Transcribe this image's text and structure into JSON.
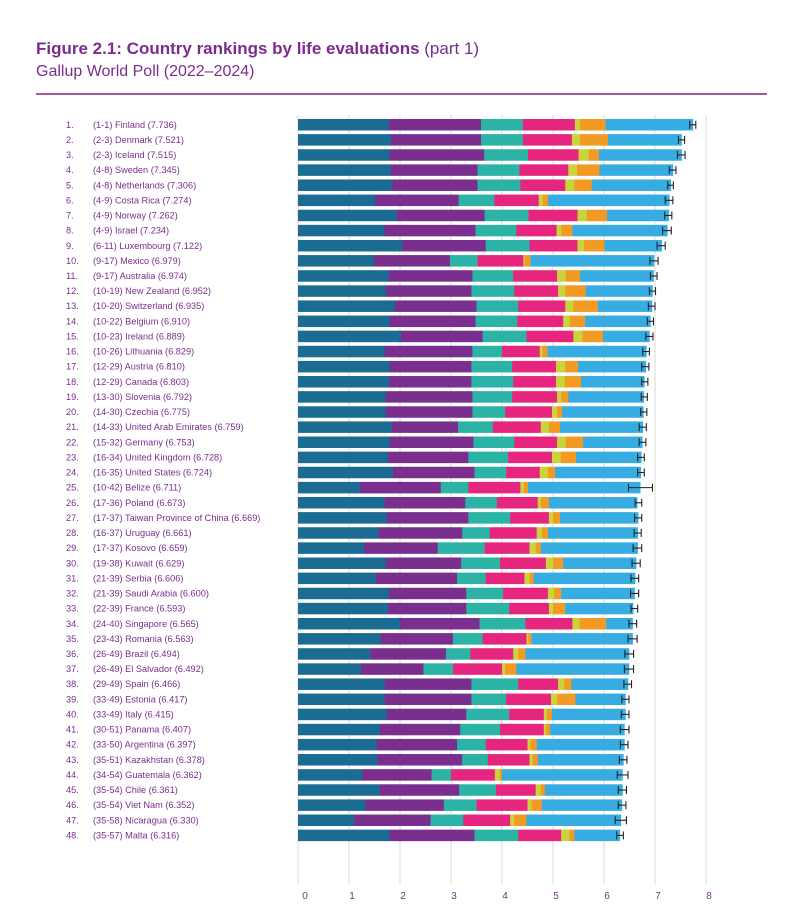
{
  "header": {
    "title": "Figure 2.1: Country rankings by life evaluations",
    "title_suffix": "(part 1)",
    "subtitle": "Gallup World Poll (2022–2024)"
  },
  "colors": {
    "title": "#7b2d8e",
    "rule": "#a9559f",
    "segments": [
      "#1b6b93",
      "#7a2f8f",
      "#2bb3a6",
      "#e6267e",
      "#c7d53a",
      "#f39a24",
      "#36ace2"
    ]
  },
  "chart_data": {
    "type": "bar",
    "stacked": true,
    "orientation": "horizontal",
    "xlim": [
      0,
      8
    ],
    "x_ticks": [
      0,
      1,
      2,
      3,
      4,
      5,
      6,
      7,
      8
    ],
    "grid": true,
    "error_bars": true,
    "rows": [
      {
        "rank": "1.",
        "range": "(1-1)",
        "country": "Finland",
        "score": "7.736",
        "segments": [
          1.78,
          1.81,
          0.82,
          1.02,
          0.1,
          0.5,
          1.71
        ],
        "ci": [
          7.68,
          7.8
        ]
      },
      {
        "rank": "2.",
        "range": "(2-3)",
        "country": "Denmark",
        "score": "7.521",
        "segments": [
          1.82,
          1.77,
          0.82,
          0.96,
          0.16,
          0.55,
          1.44
        ],
        "ci": [
          7.46,
          7.58
        ]
      },
      {
        "rank": "3.",
        "range": "(2-3)",
        "country": "Iceland",
        "score": "7.515",
        "segments": [
          1.8,
          1.85,
          0.86,
          0.99,
          0.2,
          0.2,
          1.62
        ],
        "ci": [
          7.44,
          7.59
        ]
      },
      {
        "rank": "4.",
        "range": "(4-8)",
        "country": "Sweden",
        "score": "7.345",
        "segments": [
          1.82,
          1.7,
          0.82,
          0.96,
          0.17,
          0.44,
          1.44
        ],
        "ci": [
          7.28,
          7.41
        ]
      },
      {
        "rank": "5.",
        "range": "(4-8)",
        "country": "Netherlands",
        "score": "7.306",
        "segments": [
          1.84,
          1.68,
          0.84,
          0.88,
          0.18,
          0.34,
          1.55
        ],
        "ci": [
          7.25,
          7.36
        ]
      },
      {
        "rank": "6.",
        "range": "(4-9)",
        "country": "Costa Rica",
        "score": "7.274",
        "segments": [
          1.51,
          1.64,
          0.7,
          0.87,
          0.08,
          0.1,
          2.38
        ],
        "ci": [
          7.2,
          7.35
        ]
      },
      {
        "rank": "7.",
        "range": "(4-9)",
        "country": "Norway",
        "score": "7.262",
        "segments": [
          1.94,
          1.72,
          0.86,
          0.96,
          0.18,
          0.4,
          1.21
        ],
        "ci": [
          7.19,
          7.33
        ]
      },
      {
        "rank": "8.",
        "range": "(4-9)",
        "country": "Israel",
        "score": "7.234",
        "segments": [
          1.7,
          1.78,
          0.8,
          0.79,
          0.09,
          0.22,
          1.86
        ],
        "ci": [
          7.15,
          7.32
        ]
      },
      {
        "rank": "9.",
        "range": "(6-11)",
        "country": "Luxembourg",
        "score": "7.122",
        "segments": [
          2.04,
          1.64,
          0.86,
          0.94,
          0.13,
          0.4,
          1.12
        ],
        "ci": [
          7.04,
          7.2
        ]
      },
      {
        "rank": "10.",
        "range": "(9-17)",
        "country": "Mexico",
        "score": "6.979",
        "segments": [
          1.49,
          1.49,
          0.54,
          0.9,
          0.03,
          0.11,
          2.42
        ],
        "ci": [
          6.9,
          7.06
        ]
      },
      {
        "rank": "11.",
        "range": "(9-17)",
        "country": "Australia",
        "score": "6.974",
        "segments": [
          1.78,
          1.64,
          0.8,
          0.86,
          0.17,
          0.28,
          1.44
        ],
        "ci": [
          6.91,
          7.04
        ]
      },
      {
        "rank": "12.",
        "range": "(10-19)",
        "country": "New Zealand",
        "score": "6.952",
        "segments": [
          1.72,
          1.68,
          0.84,
          0.86,
          0.14,
          0.4,
          1.31
        ],
        "ci": [
          6.89,
          7.01
        ]
      },
      {
        "rank": "13.",
        "range": "(10-20)",
        "country": "Switzerland",
        "score": "6.935",
        "segments": [
          1.9,
          1.6,
          0.82,
          0.92,
          0.16,
          0.48,
          1.06
        ],
        "ci": [
          6.87,
          7.0
        ]
      },
      {
        "rank": "14.",
        "range": "(10-22)",
        "country": "Belgium",
        "score": "6.910",
        "segments": [
          1.8,
          1.68,
          0.82,
          0.9,
          0.13,
          0.3,
          1.28
        ],
        "ci": [
          6.85,
          6.97
        ]
      },
      {
        "rank": "15.",
        "range": "(10-23)",
        "country": "Ireland",
        "score": "6.889",
        "segments": [
          2.02,
          1.6,
          0.86,
          0.92,
          0.18,
          0.4,
          0.91
        ],
        "ci": [
          6.82,
          6.96
        ]
      },
      {
        "rank": "16.",
        "range": "(10-26)",
        "country": "Lithuania",
        "score": "6.829",
        "segments": [
          1.7,
          1.72,
          0.58,
          0.74,
          0.05,
          0.1,
          1.94
        ],
        "ci": [
          6.76,
          6.89
        ]
      },
      {
        "rank": "17.",
        "range": "(12-29)",
        "country": "Austria",
        "score": "6.810",
        "segments": [
          1.8,
          1.6,
          0.8,
          0.86,
          0.18,
          0.25,
          1.33
        ],
        "ci": [
          6.74,
          6.88
        ]
      },
      {
        "rank": "18.",
        "range": "(12-29)",
        "country": "Canada",
        "score": "6.803",
        "segments": [
          1.78,
          1.62,
          0.82,
          0.84,
          0.17,
          0.32,
          1.24
        ],
        "ci": [
          6.74,
          6.86
        ]
      },
      {
        "rank": "19.",
        "range": "(13-30)",
        "country": "Slovenia",
        "score": "6.792",
        "segments": [
          1.72,
          1.7,
          0.78,
          0.88,
          0.08,
          0.14,
          1.48
        ],
        "ci": [
          6.73,
          6.85
        ]
      },
      {
        "rank": "20.",
        "range": "(14-30)",
        "country": "Czechia",
        "score": "6.775",
        "segments": [
          1.72,
          1.7,
          0.64,
          0.92,
          0.1,
          0.1,
          1.59
        ],
        "ci": [
          6.72,
          6.84
        ]
      },
      {
        "rank": "21.",
        "range": "(14-33)",
        "country": "United Arab Emirates",
        "score": "6.759",
        "segments": [
          1.84,
          1.3,
          0.68,
          0.94,
          0.16,
          0.22,
          1.62
        ],
        "ci": [
          6.69,
          6.83
        ]
      },
      {
        "rank": "22.",
        "range": "(15-32)",
        "country": "Germany",
        "score": "6.753",
        "segments": [
          1.8,
          1.64,
          0.8,
          0.84,
          0.17,
          0.34,
          1.16
        ],
        "ci": [
          6.69,
          6.82
        ]
      },
      {
        "rank": "23.",
        "range": "(16-34)",
        "country": "United Kingdom",
        "score": "6.728",
        "segments": [
          1.76,
          1.58,
          0.78,
          0.86,
          0.17,
          0.3,
          1.28
        ],
        "ci": [
          6.66,
          6.79
        ]
      },
      {
        "rank": "24.",
        "range": "(16-35)",
        "country": "United States",
        "score": "6.724",
        "segments": [
          1.86,
          1.6,
          0.62,
          0.66,
          0.16,
          0.14,
          1.68
        ],
        "ci": [
          6.66,
          6.79
        ]
      },
      {
        "rank": "25.",
        "range": "(10-42)",
        "country": "Belize",
        "score": "6.711",
        "segments": [
          1.22,
          1.58,
          0.54,
          1.02,
          0.07,
          0.08,
          2.2
        ],
        "ci": [
          6.48,
          6.95
        ]
      },
      {
        "rank": "26.",
        "range": "(17-36)",
        "country": "Poland",
        "score": "6.673",
        "segments": [
          1.7,
          1.58,
          0.62,
          0.8,
          0.06,
          0.16,
          1.73
        ],
        "ci": [
          6.61,
          6.74
        ]
      },
      {
        "rank": "27.",
        "range": "(17-37)",
        "country": "Taiwan Province of China",
        "score": "6.669",
        "segments": [
          1.74,
          1.6,
          0.82,
          0.76,
          0.08,
          0.14,
          1.53
        ],
        "ci": [
          6.6,
          6.74
        ]
      },
      {
        "rank": "28.",
        "range": "(16-37)",
        "country": "Uruguay",
        "score": "6.661",
        "segments": [
          1.58,
          1.64,
          0.54,
          0.92,
          0.1,
          0.12,
          1.76
        ],
        "ci": [
          6.59,
          6.73
        ]
      },
      {
        "rank": "29.",
        "range": "(17-37)",
        "country": "Kosovo",
        "score": "6.659",
        "segments": [
          1.3,
          1.44,
          0.92,
          0.88,
          0.12,
          0.1,
          1.9
        ],
        "ci": [
          6.57,
          6.74
        ]
      },
      {
        "rank": "30.",
        "range": "(19-38)",
        "country": "Kuwait",
        "score": "6.629",
        "segments": [
          1.72,
          1.48,
          0.76,
          0.9,
          0.14,
          0.2,
          1.43
        ],
        "ci": [
          6.55,
          6.71
        ]
      },
      {
        "rank": "31.",
        "range": "(21-39)",
        "country": "Serbia",
        "score": "6.606",
        "segments": [
          1.52,
          1.6,
          0.56,
          0.76,
          0.1,
          0.08,
          1.99
        ],
        "ci": [
          6.53,
          6.68
        ]
      },
      {
        "rank": "32.",
        "range": "(21-39)",
        "country": "Saudi Arabia",
        "score": "6.600",
        "segments": [
          1.78,
          1.52,
          0.72,
          0.88,
          0.12,
          0.14,
          1.44
        ],
        "ci": [
          6.52,
          6.68
        ]
      },
      {
        "rank": "33.",
        "range": "(22-39)",
        "country": "France",
        "score": "6.593",
        "segments": [
          1.76,
          1.54,
          0.84,
          0.78,
          0.08,
          0.24,
          1.33
        ],
        "ci": [
          6.53,
          6.66
        ]
      },
      {
        "rank": "34.",
        "range": "(24-40)",
        "country": "Singapore",
        "score": "6.565",
        "segments": [
          2.0,
          1.56,
          0.9,
          0.92,
          0.14,
          0.52,
          0.52
        ],
        "ci": [
          6.49,
          6.64
        ]
      },
      {
        "rank": "35.",
        "range": "(23-43)",
        "country": "Romania",
        "score": "6.563",
        "segments": [
          1.62,
          1.42,
          0.58,
          0.86,
          0.04,
          0.06,
          1.98
        ],
        "ci": [
          6.47,
          6.65
        ]
      },
      {
        "rank": "36.",
        "range": "(26-49)",
        "country": "Brazil",
        "score": "6.494",
        "segments": [
          1.42,
          1.48,
          0.48,
          0.84,
          0.1,
          0.14,
          2.03
        ],
        "ci": [
          6.41,
          6.58
        ]
      },
      {
        "rank": "37.",
        "range": "(26-49)",
        "country": "El Salvador",
        "score": "6.492",
        "segments": [
          1.24,
          1.22,
          0.58,
          0.96,
          0.06,
          0.22,
          2.21
        ],
        "ci": [
          6.4,
          6.58
        ]
      },
      {
        "rank": "38.",
        "range": "(29-49)",
        "country": "Spain",
        "score": "6.466",
        "segments": [
          1.7,
          1.7,
          0.92,
          0.78,
          0.12,
          0.14,
          1.11
        ],
        "ci": [
          6.39,
          6.54
        ]
      },
      {
        "rank": "39.",
        "range": "(33-49)",
        "country": "Estonia",
        "score": "6.417",
        "segments": [
          1.7,
          1.7,
          0.68,
          0.88,
          0.12,
          0.36,
          0.98
        ],
        "ci": [
          6.35,
          6.49
        ]
      },
      {
        "rank": "40.",
        "range": "(33-49)",
        "country": "Italy",
        "score": "6.415",
        "segments": [
          1.74,
          1.56,
          0.84,
          0.68,
          0.06,
          0.1,
          1.44
        ],
        "ci": [
          6.34,
          6.49
        ]
      },
      {
        "rank": "41.",
        "range": "(30-51)",
        "country": "Panama",
        "score": "6.407",
        "segments": [
          1.6,
          1.58,
          0.78,
          0.86,
          0.04,
          0.08,
          1.46
        ],
        "ci": [
          6.32,
          6.49
        ]
      },
      {
        "rank": "42.",
        "range": "(33-50)",
        "country": "Argentina",
        "score": "6.397",
        "segments": [
          1.54,
          1.58,
          0.56,
          0.82,
          0.06,
          0.12,
          1.72
        ],
        "ci": [
          6.32,
          6.47
        ]
      },
      {
        "rank": "43.",
        "range": "(35-51)",
        "country": "Kazakhstan",
        "score": "6.378",
        "segments": [
          1.56,
          1.66,
          0.5,
          0.82,
          0.06,
          0.1,
          1.68
        ],
        "ci": [
          6.3,
          6.45
        ]
      },
      {
        "rank": "44.",
        "range": "(34-54)",
        "country": "Guatemala",
        "score": "6.362",
        "segments": [
          1.26,
          1.36,
          0.38,
          0.86,
          0.1,
          0.04,
          2.36
        ],
        "ci": [
          6.26,
          6.47
        ]
      },
      {
        "rank": "45.",
        "range": "(35-54)",
        "country": "Chile",
        "score": "6.361",
        "segments": [
          1.6,
          1.56,
          0.72,
          0.78,
          0.1,
          0.08,
          1.52
        ],
        "ci": [
          6.28,
          6.44
        ]
      },
      {
        "rank": "46.",
        "range": "(35-54)",
        "country": "Viet Nam",
        "score": "6.352",
        "segments": [
          1.32,
          1.54,
          0.64,
          1.0,
          0.08,
          0.2,
          1.57
        ],
        "ci": [
          6.28,
          6.43
        ]
      },
      {
        "rank": "47.",
        "range": "(35-58)",
        "country": "Nicaragua",
        "score": "6.330",
        "segments": [
          1.1,
          1.5,
          0.64,
          0.92,
          0.08,
          0.24,
          1.85
        ],
        "ci": [
          6.22,
          6.44
        ]
      },
      {
        "rank": "48.",
        "range": "(35-57)",
        "country": "Malta",
        "score": "6.316",
        "segments": [
          1.8,
          1.66,
          0.86,
          0.84,
          0.16,
          0.1,
          0.89
        ],
        "ci": [
          6.25,
          6.38
        ]
      }
    ]
  }
}
